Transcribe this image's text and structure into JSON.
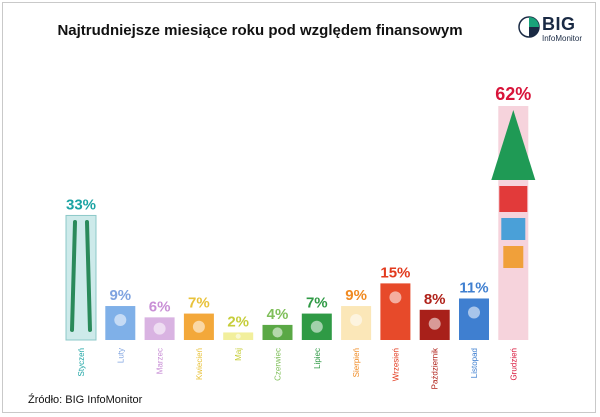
{
  "title": "Najtrudniejsze miesiące roku pod względem finansowym",
  "logo": {
    "name": "BIG",
    "sub": "InfoMonitor"
  },
  "source": "Źródło: BIG InfoMonitor",
  "chart_data": {
    "type": "bar",
    "categories": [
      "Styczeń",
      "Luty",
      "Marzec",
      "Kwiecień",
      "Maj",
      "Czerwiec",
      "Lipiec",
      "Sierpień",
      "Wrzesień",
      "Październik",
      "Listopad",
      "Grudzień"
    ],
    "values": [
      33,
      9,
      6,
      7,
      2,
      4,
      7,
      9,
      15,
      8,
      11,
      62
    ],
    "value_labels": [
      "33%",
      "9%",
      "6%",
      "7%",
      "2%",
      "4%",
      "7%",
      "9%",
      "15%",
      "8%",
      "11%",
      "62%"
    ],
    "ylim": [
      0,
      62
    ],
    "grid": false,
    "legend": "none",
    "colors": [
      "#1aa3a3",
      "#7fa3e0",
      "#c98fd6",
      "#e8c23a",
      "#c6cd3a",
      "#7fbf5a",
      "#2f9a45",
      "#f08a22",
      "#e23a1e",
      "#b0221a",
      "#3f7fd0",
      "#d8143a"
    ],
    "bar_colors": [
      "#cdeaea",
      "#7fb0e8",
      "#d9b3e2",
      "#f3a83a",
      "#f2ef9c",
      "#5aa845",
      "#2f9a45",
      "#fbe7b8",
      "#e74a2a",
      "#a8201a",
      "#3f7fd0",
      "#f6d3dc"
    ]
  }
}
